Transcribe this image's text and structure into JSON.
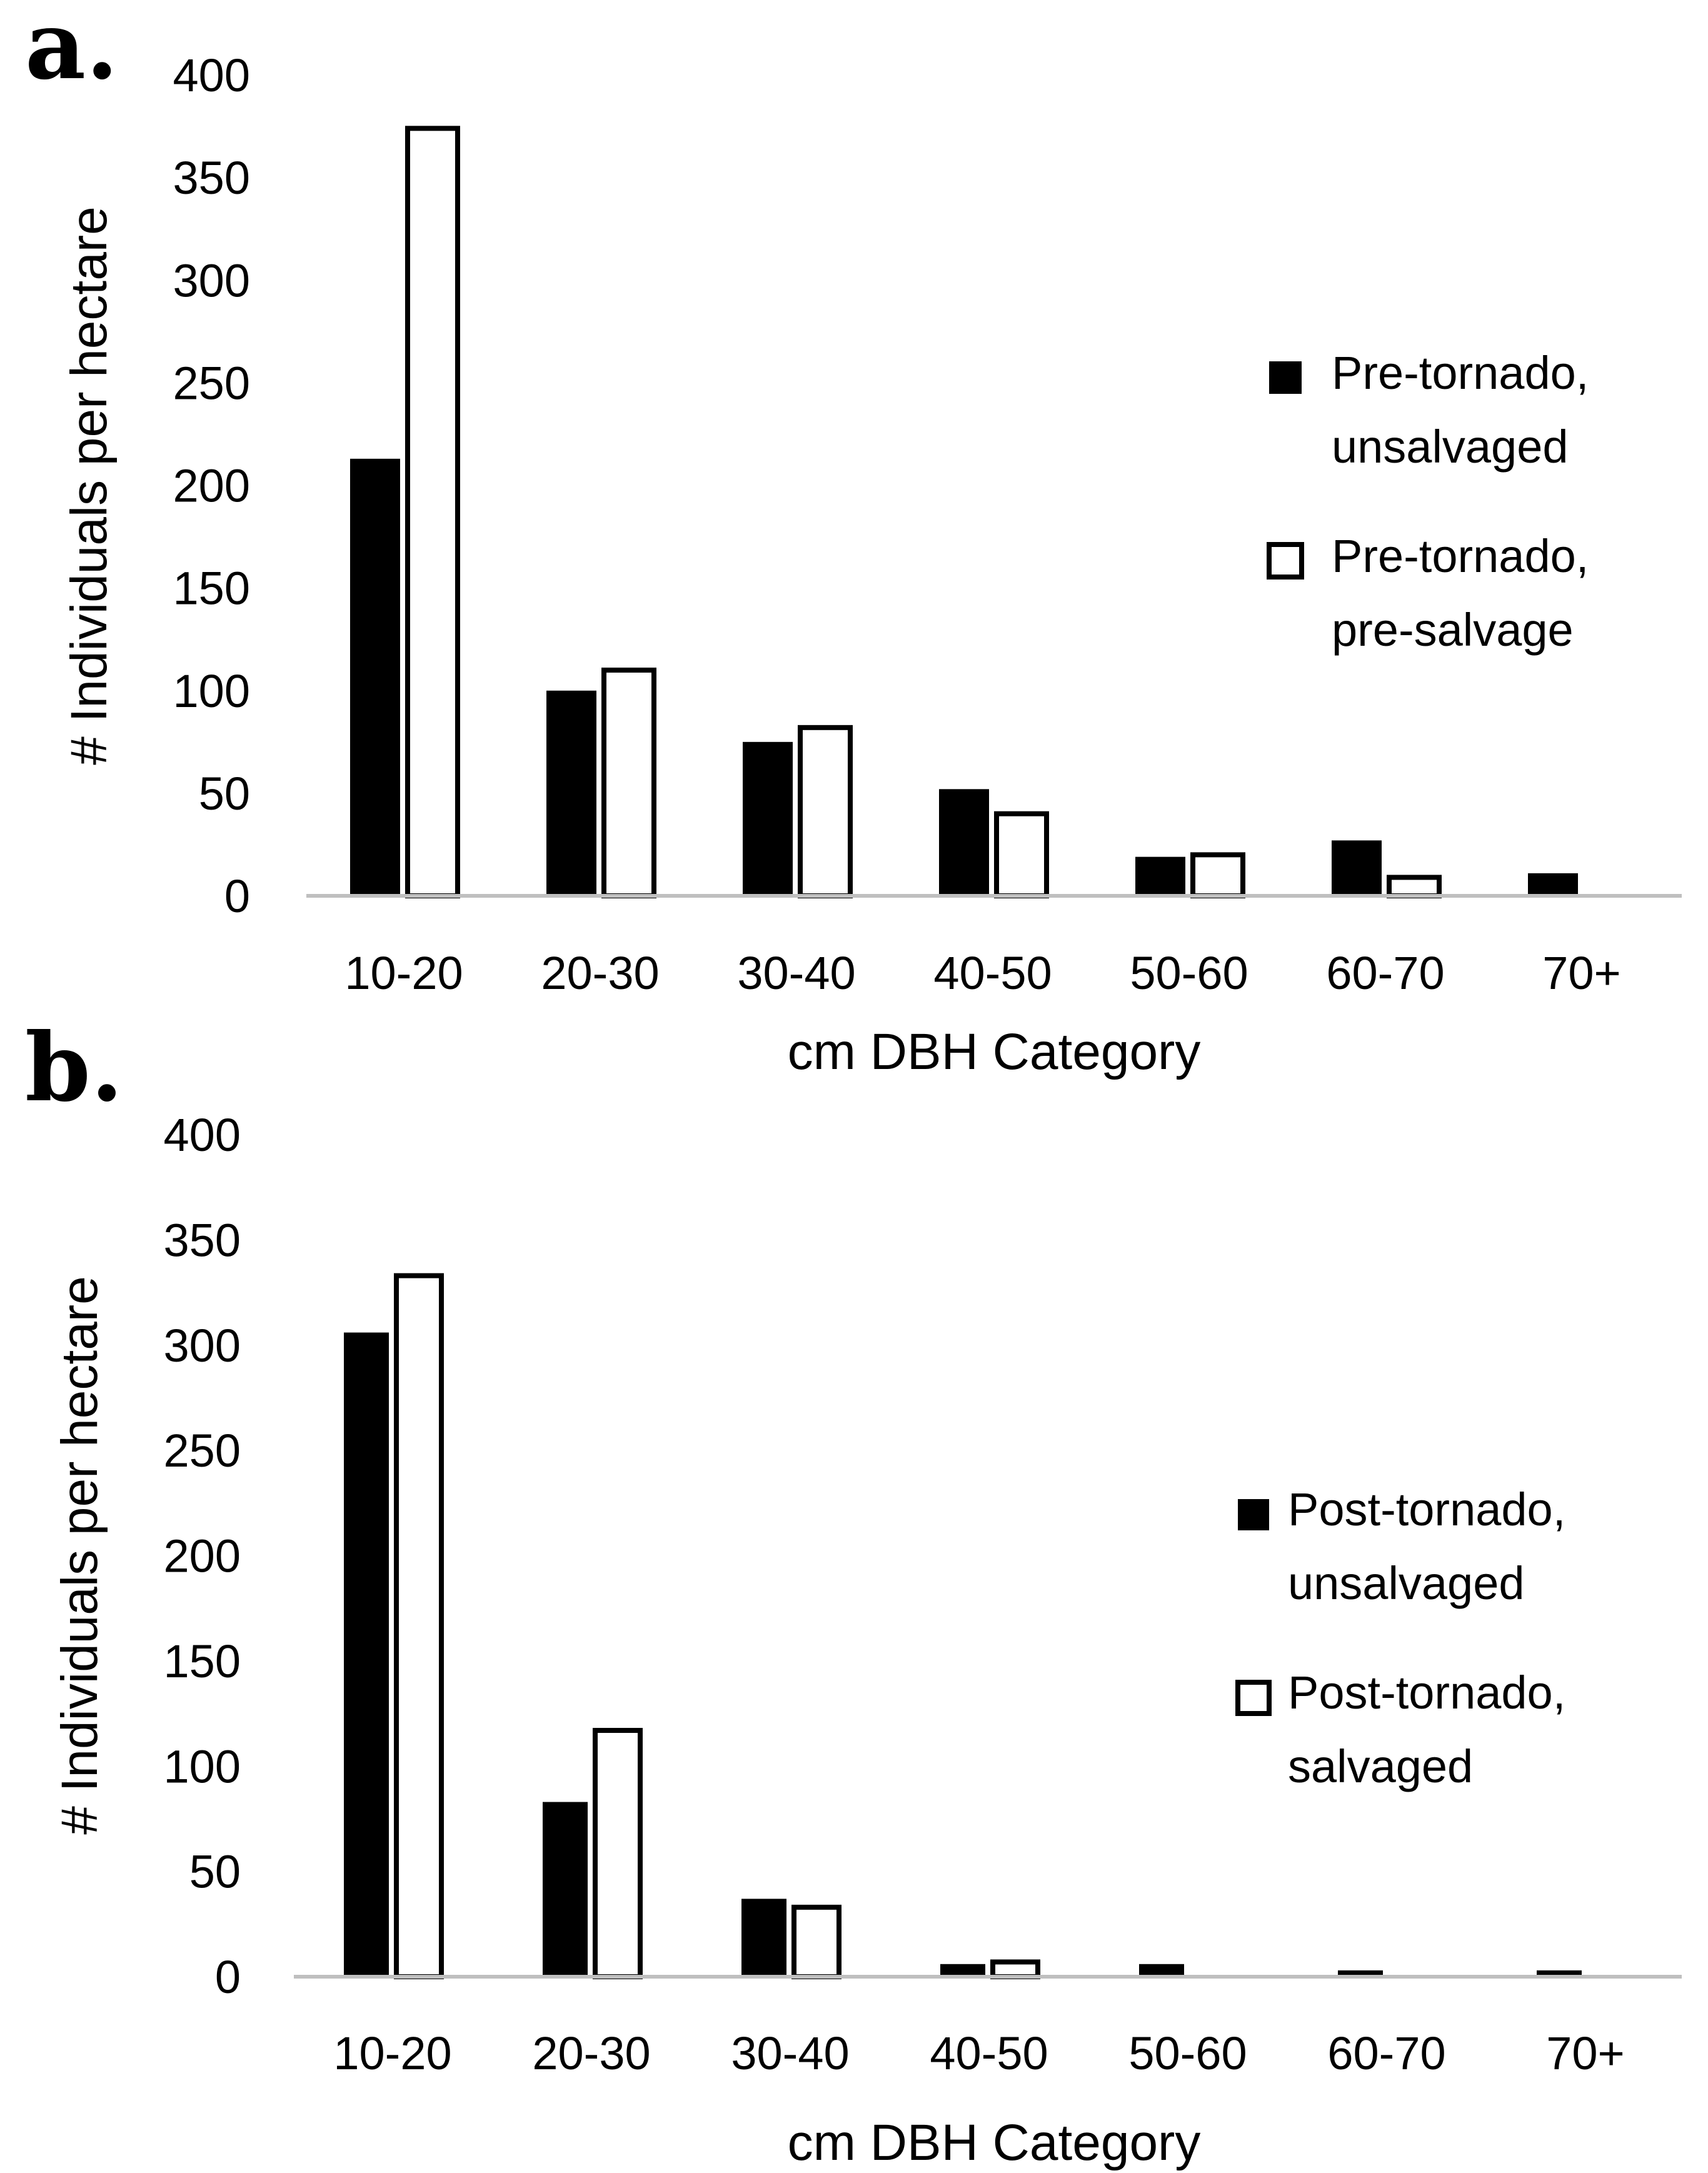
{
  "chart_data": [
    {
      "type": "bar",
      "panel_label": "a.",
      "categories": [
        "10-20",
        "20-30",
        "30-40",
        "40-50",
        "50-60",
        "60-70",
        "70+"
      ],
      "series": [
        {
          "name": "Pre-tornado, unsalvaged",
          "legend_lines": [
            "Pre-tornado,",
            "unsalvaged"
          ],
          "style": "filled",
          "color": "#000000",
          "values": [
            213,
            100,
            75,
            52,
            19,
            27,
            11
          ]
        },
        {
          "name": "Pre-tornado, pre-salvage",
          "legend_lines": [
            "Pre-tornado,",
            "pre-salvage"
          ],
          "style": "open",
          "color": "#ffffff",
          "values": [
            374,
            110,
            82,
            40,
            20,
            9,
            0
          ]
        }
      ],
      "xlabel": "cm DBH Category",
      "ylabel": "# Individuals per hectare",
      "ylim": [
        0,
        400
      ],
      "yticks": [
        0,
        50,
        100,
        150,
        200,
        250,
        300,
        350,
        400
      ],
      "legend_position": "right"
    },
    {
      "type": "bar",
      "panel_label": "b.",
      "categories": [
        "10-20",
        "20-30",
        "30-40",
        "40-50",
        "50-60",
        "60-70",
        "70+"
      ],
      "series": [
        {
          "name": "Post-tornado, unsalvaged",
          "legend_lines": [
            "Post-tornado,",
            "unsalvaged"
          ],
          "style": "filled",
          "color": "#000000",
          "values": [
            306,
            83,
            37,
            6,
            6,
            3,
            3
          ]
        },
        {
          "name": "Post-tornado, salvaged",
          "legend_lines": [
            "Post-tornado,",
            "salvaged"
          ],
          "style": "open",
          "color": "#ffffff",
          "values": [
            333,
            117,
            33,
            7,
            0,
            0,
            0
          ]
        }
      ],
      "xlabel": "cm DBH Category",
      "ylabel": "# Individuals per hectare",
      "ylim": [
        0,
        400
      ],
      "yticks": [
        0,
        50,
        100,
        150,
        200,
        250,
        300,
        350,
        400
      ],
      "legend_position": "right"
    }
  ]
}
